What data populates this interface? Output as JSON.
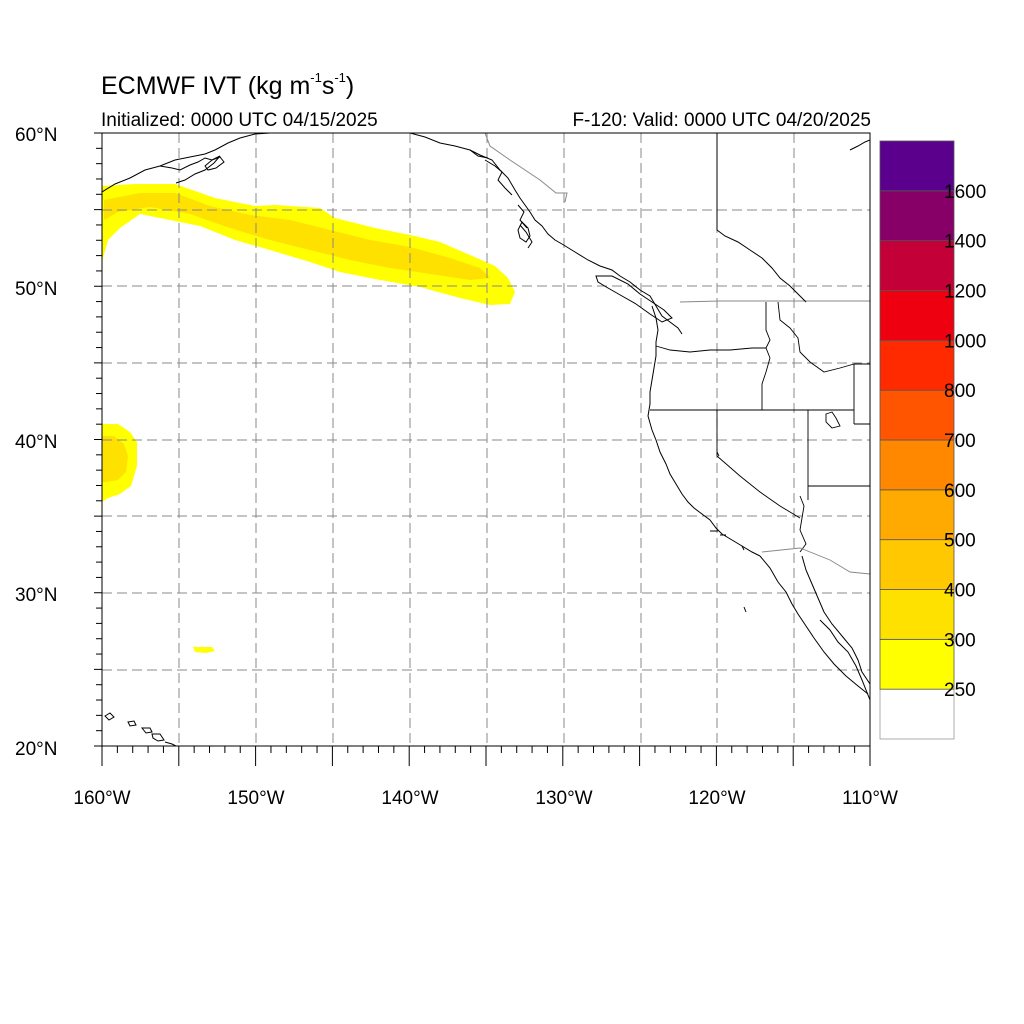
{
  "title": {
    "model": "ECMWF IVT",
    "units_prefix": "(kg m",
    "units_exp1": "-1",
    "units_mid": "s",
    "units_exp2": "-1",
    "units_suffix": ")",
    "initialized": "Initialized: 0000 UTC 04/15/2025",
    "valid": "F-120: Valid: 0000 UTC 04/20/2025"
  },
  "axes": {
    "lon_labels": [
      "160°W",
      "150°W",
      "140°W",
      "130°W",
      "120°W",
      "110°W"
    ],
    "lat_labels": [
      "20°N",
      "30°N",
      "40°N",
      "50°N",
      "60°N"
    ],
    "lon_range": [
      -160,
      -110
    ],
    "lat_range": [
      20,
      60
    ]
  },
  "colorbar": {
    "labels": [
      "250",
      "300",
      "400",
      "500",
      "600",
      "700",
      "800",
      "1000",
      "1200",
      "1400",
      "1600"
    ],
    "colors": [
      "#ffffff",
      "#ffff00",
      "#ffe100",
      "#ffc800",
      "#ffaa00",
      "#ff8800",
      "#ff5500",
      "#ff2a00",
      "#ee0010",
      "#c30038",
      "#870068",
      "#5a008c"
    ]
  },
  "colors": {
    "ivt_250": "#ffff00",
    "ivt_300": "#ffe100",
    "map_lines": "#000000",
    "grid": "#888888"
  }
}
